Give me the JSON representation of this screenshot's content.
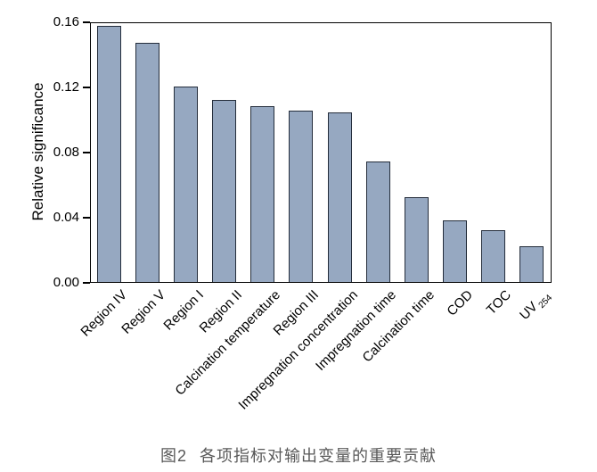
{
  "chart_data": {
    "type": "bar",
    "title": "",
    "xlabel": "",
    "ylabel": "Relative significance",
    "ylim": [
      0,
      0.16
    ],
    "ytick_labels": [
      "0.00",
      "0.04",
      "0.08",
      "0.12",
      "0.16"
    ],
    "categories": [
      "Region IV",
      "Region V",
      "Region I",
      "Region II",
      "Calcination temperature",
      "Region III",
      "Impregnation concentration",
      "Impregnation time",
      "Calcination time",
      "COD",
      "TOC",
      "UV 254"
    ],
    "category_subscripts": {
      "UV 254": {
        "base": "UV",
        "sub": "254"
      }
    },
    "values": [
      0.157,
      0.147,
      0.12,
      0.112,
      0.108,
      0.105,
      0.104,
      0.074,
      0.052,
      0.038,
      0.032,
      0.022
    ],
    "x_tick_rotation_deg": 45,
    "grid": false,
    "legend": "none",
    "bar_fill_color": "#96a8c1",
    "bar_edge_color": "#242d3b",
    "axis_color": "#000000"
  },
  "caption": {
    "label": "图2",
    "title": "各项指标对输出变量的重要贡献",
    "color": "#595959"
  }
}
